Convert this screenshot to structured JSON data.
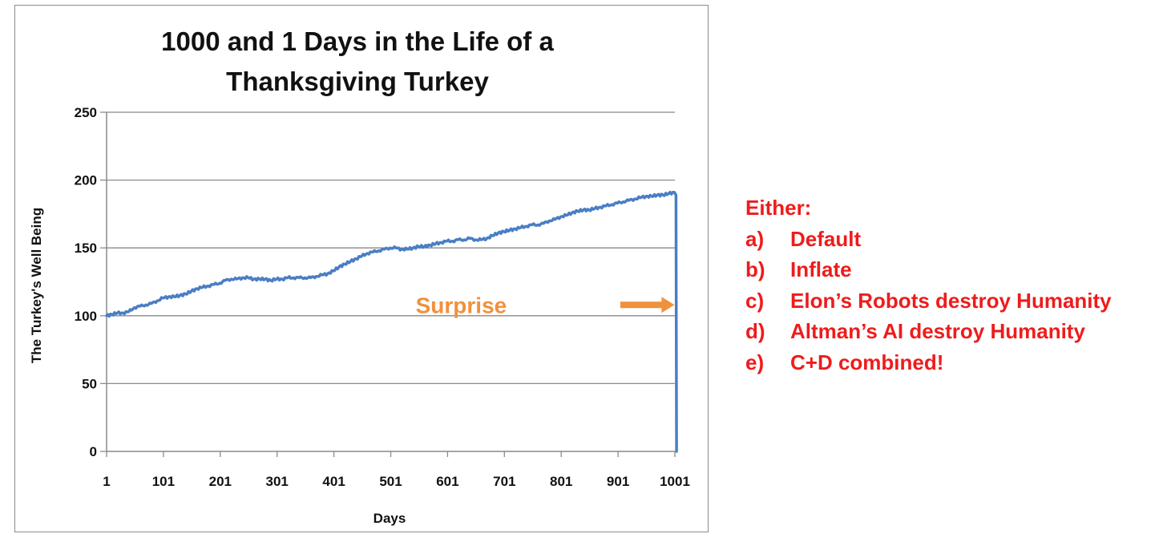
{
  "chart_data": {
    "type": "line",
    "title": [
      "1000 and 1 Days in the Life of a",
      "Thanksgiving Turkey"
    ],
    "xlabel": "Days",
    "ylabel": "The Turkey's  Well Being",
    "xlim": [
      1,
      1001
    ],
    "ylim": [
      0,
      250
    ],
    "x_ticks": [
      1,
      101,
      201,
      301,
      401,
      501,
      601,
      701,
      801,
      901,
      1001
    ],
    "y_ticks": [
      0,
      50,
      100,
      150,
      200,
      250
    ],
    "grid": "horizontal",
    "legend": "none",
    "series": [
      {
        "color": "#4a7ec4",
        "x": [
          1,
          10,
          20,
          30,
          40,
          50,
          60,
          70,
          80,
          90,
          100,
          110,
          120,
          130,
          140,
          150,
          160,
          170,
          180,
          190,
          200,
          210,
          220,
          230,
          240,
          250,
          260,
          270,
          280,
          290,
          300,
          310,
          320,
          330,
          340,
          350,
          360,
          370,
          380,
          390,
          400,
          410,
          420,
          430,
          440,
          450,
          460,
          470,
          480,
          490,
          500,
          510,
          520,
          530,
          540,
          550,
          560,
          570,
          580,
          590,
          600,
          610,
          620,
          630,
          640,
          650,
          660,
          670,
          680,
          690,
          700,
          710,
          720,
          730,
          740,
          750,
          760,
          770,
          780,
          790,
          800,
          810,
          820,
          830,
          840,
          850,
          860,
          870,
          880,
          890,
          900,
          910,
          920,
          930,
          940,
          950,
          960,
          970,
          980,
          990,
          1000,
          1003,
          1004
        ],
        "y": [
          100,
          101,
          102,
          102,
          103,
          106,
          107,
          108,
          109,
          111,
          113,
          114,
          114,
          115,
          116,
          118,
          120,
          121,
          122,
          123,
          124,
          126,
          127,
          127,
          128,
          128,
          127,
          127,
          127,
          126,
          127,
          127,
          128,
          128,
          128,
          128,
          128,
          129,
          130,
          131,
          133,
          136,
          138,
          140,
          142,
          144,
          146,
          147,
          148,
          149,
          150,
          150,
          149,
          149,
          150,
          151,
          151,
          152,
          153,
          154,
          155,
          155,
          156,
          156,
          157,
          156,
          156,
          157,
          159,
          161,
          162,
          163,
          164,
          165,
          166,
          167,
          167,
          168,
          170,
          171,
          173,
          174,
          176,
          177,
          178,
          178,
          179,
          180,
          181,
          182,
          183,
          184,
          185,
          186,
          187,
          188,
          188,
          189,
          189,
          190,
          191,
          189,
          0
        ]
      }
    ],
    "annotations": [
      {
        "text": "Surprise",
        "x": 625,
        "y": 108,
        "arrow_from": [
          905,
          108
        ],
        "arrow_to": [
          1003,
          108
        ],
        "color": "#f0913b"
      }
    ]
  },
  "options": {
    "heading": "Either:",
    "items": [
      {
        "marker": "a)",
        "text": "Default"
      },
      {
        "marker": "b)",
        "text": "Inflate"
      },
      {
        "marker": "c)",
        "text": "Elon’s Robots destroy Humanity"
      },
      {
        "marker": "d)",
        "text": "Altman’s AI destroy Humanity"
      },
      {
        "marker": "e)",
        "text": "C+D combined!"
      }
    ],
    "color": "#ee1c1c"
  }
}
